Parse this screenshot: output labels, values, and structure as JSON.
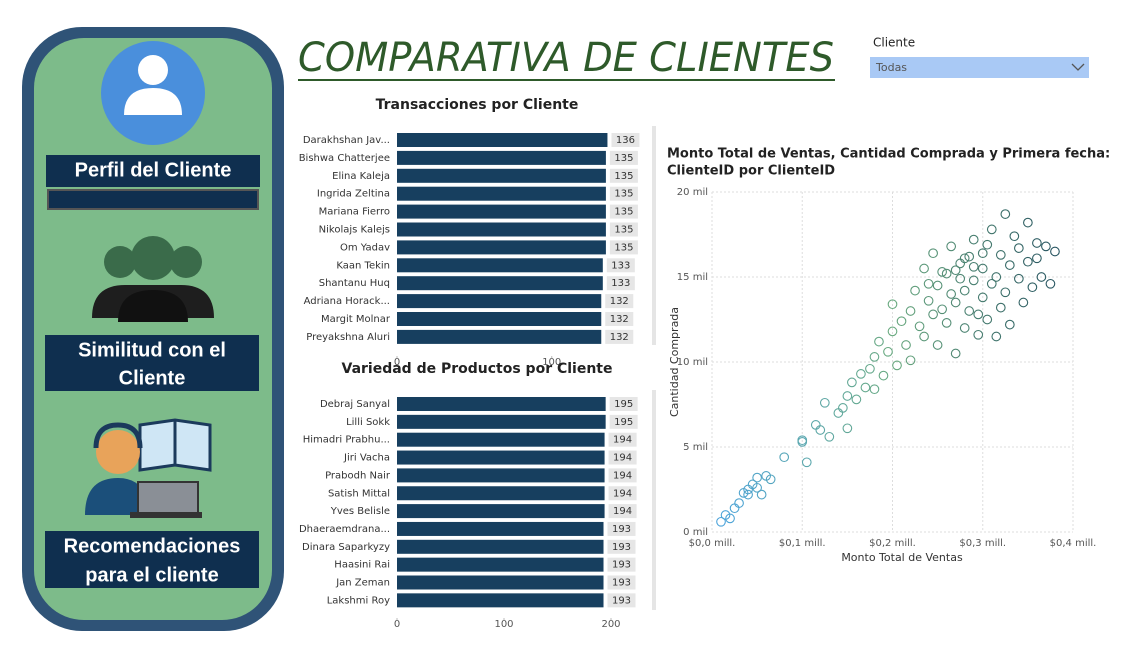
{
  "header": {
    "title": "COMPARATIVA DE CLIENTES"
  },
  "filter": {
    "label": "Cliente",
    "value": "Todas"
  },
  "sidebar": {
    "buttons": [
      {
        "label": "Perfil del Cliente"
      },
      {
        "label": "Similitud con el"
      },
      {
        "label": "Cliente"
      },
      {
        "label": "Recomendaciones"
      },
      {
        "label": "para el cliente"
      }
    ]
  },
  "chart_data": [
    {
      "type": "hbar",
      "title": "Transacciones por Cliente",
      "color": "#173f5f",
      "categories": [
        "Darakhshan Jav...",
        "Bishwa Chatterjee",
        "Elina Kaleja",
        "Ingrida Zeltina",
        "Mariana Fierro",
        "Nikolajs Kalejs",
        "Om Yadav",
        "Kaan Tekin",
        "Shantanu Huq",
        "Adriana Horack...",
        "Margit Molnar",
        "Preyakshna Aluri"
      ],
      "values": [
        136,
        135,
        135,
        135,
        135,
        135,
        135,
        133,
        133,
        132,
        132,
        132
      ],
      "xlim": [
        0,
        137
      ],
      "xticks": [
        0,
        100
      ]
    },
    {
      "type": "hbar",
      "title": "Variedad de Productos por Cliente",
      "color": "#173f5f",
      "categories": [
        "Debraj Sanyal",
        "Lilli Sokk",
        "Himadri Prabhu...",
        "Jiri Vacha",
        "Prabodh Nair",
        "Satish Mittal",
        "Yves Belisle",
        "Dhaeraemdrana...",
        "Dinara Saparkyzy",
        "Haasini Rai",
        "Jan Zeman",
        "Lakshmi Roy"
      ],
      "values": [
        195,
        195,
        194,
        194,
        194,
        194,
        194,
        193,
        193,
        193,
        193,
        193
      ],
      "xlim": [
        0,
        200
      ],
      "xticks": [
        0,
        100,
        200
      ]
    },
    {
      "type": "scatter",
      "title": "Monto Total de Ventas, Cantidad Comprada y Primera fecha:",
      "subtitle": "ClienteID por ClienteID",
      "x_label": "Monto Total de Ventas",
      "y_label": "Cantidad Comprada",
      "colors": [
        "#4aa3df",
        "#6aaa80",
        "#1f4a5c"
      ],
      "grid": true,
      "xlim": [
        0,
        0.4
      ],
      "ylim": [
        0,
        20
      ],
      "xticks": [
        {
          "value": 0,
          "label": "$0,0 mill."
        },
        {
          "value": 0.1,
          "label": "$0,1 mill."
        },
        {
          "value": 0.2,
          "label": "$0,2 mill."
        },
        {
          "value": 0.3,
          "label": "$0,3 mill."
        },
        {
          "value": 0.4,
          "label": "$0,4 mill."
        }
      ],
      "yticks": [
        {
          "value": 0,
          "label": "0 mil"
        },
        {
          "value": 5,
          "label": "5 mil"
        },
        {
          "value": 10,
          "label": "10 mil"
        },
        {
          "value": 15,
          "label": "15 mil"
        },
        {
          "value": 20,
          "label": "20 mil"
        }
      ],
      "x": [
        0.01,
        0.015,
        0.02,
        0.025,
        0.03,
        0.035,
        0.04,
        0.045,
        0.05,
        0.055,
        0.06,
        0.04,
        0.05,
        0.065,
        0.08,
        0.1,
        0.1,
        0.105,
        0.115,
        0.12,
        0.125,
        0.13,
        0.14,
        0.145,
        0.15,
        0.15,
        0.155,
        0.16,
        0.165,
        0.17,
        0.175,
        0.18,
        0.18,
        0.185,
        0.19,
        0.195,
        0.2,
        0.2,
        0.205,
        0.21,
        0.215,
        0.22,
        0.22,
        0.225,
        0.23,
        0.235,
        0.235,
        0.24,
        0.245,
        0.245,
        0.25,
        0.25,
        0.255,
        0.26,
        0.26,
        0.265,
        0.265,
        0.27,
        0.27,
        0.275,
        0.28,
        0.28,
        0.285,
        0.285,
        0.29,
        0.29,
        0.295,
        0.3,
        0.3,
        0.305,
        0.305,
        0.31,
        0.31,
        0.315,
        0.32,
        0.32,
        0.325,
        0.325,
        0.33,
        0.33,
        0.335,
        0.34,
        0.34,
        0.345,
        0.35,
        0.35,
        0.355,
        0.36,
        0.36,
        0.365,
        0.37,
        0.375,
        0.38,
        0.315,
        0.295,
        0.275,
        0.255,
        0.24,
        0.29,
        0.3,
        0.27,
        0.28
      ],
      "y": [
        0.6,
        1.0,
        0.8,
        1.4,
        1.7,
        2.3,
        2.5,
        2.8,
        3.2,
        2.2,
        3.3,
        2.2,
        2.6,
        3.1,
        4.4,
        5.4,
        5.3,
        4.1,
        6.3,
        6.0,
        7.6,
        5.6,
        7.0,
        7.3,
        6.1,
        8.0,
        8.8,
        7.8,
        9.3,
        8.5,
        9.6,
        10.3,
        8.4,
        11.2,
        9.2,
        10.6,
        11.8,
        13.4,
        9.8,
        12.4,
        11.0,
        13.0,
        10.1,
        14.2,
        12.1,
        15.5,
        11.5,
        13.6,
        12.8,
        16.4,
        14.5,
        11.0,
        13.1,
        15.2,
        12.3,
        14.0,
        16.8,
        13.5,
        10.5,
        15.8,
        14.2,
        12.0,
        16.2,
        13.0,
        17.2,
        14.8,
        11.6,
        15.5,
        13.8,
        16.9,
        12.5,
        14.6,
        17.8,
        15.0,
        13.2,
        16.3,
        18.7,
        14.1,
        15.7,
        12.2,
        17.4,
        14.9,
        16.7,
        13.5,
        15.9,
        18.2,
        14.4,
        16.1,
        17.0,
        15.0,
        16.8,
        14.6,
        16.5,
        11.5,
        12.8,
        14.9,
        15.3,
        14.6,
        15.6,
        16.4,
        15.4,
        16.1
      ]
    }
  ]
}
